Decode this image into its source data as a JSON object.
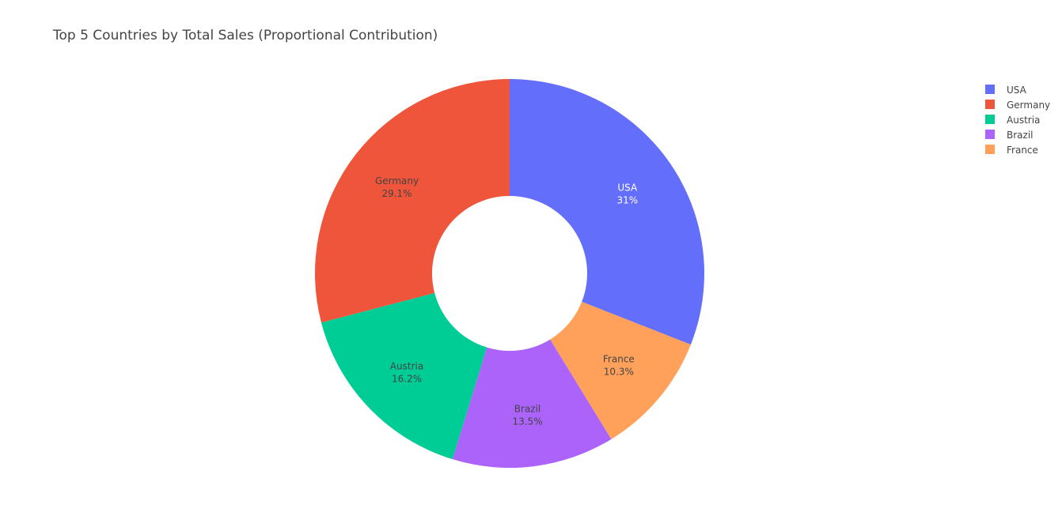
{
  "chart_data": {
    "type": "pie",
    "hole": true,
    "title": "Top 5 Countries by Total Sales (Proportional Contribution)",
    "slices": [
      {
        "label": "USA",
        "percent_label": "31%",
        "value": 31.0,
        "color": "#636efa",
        "text_color": "#ffffff"
      },
      {
        "label": "France",
        "percent_label": "10.3%",
        "value": 10.3,
        "color": "#ffa15a",
        "text_color": "#444444"
      },
      {
        "label": "Brazil",
        "percent_label": "13.5%",
        "value": 13.5,
        "color": "#ab63fa",
        "text_color": "#444444"
      },
      {
        "label": "Austria",
        "percent_label": "16.2%",
        "value": 16.2,
        "color": "#00cc96",
        "text_color": "#444444"
      },
      {
        "label": "Germany",
        "percent_label": "29.1%",
        "value": 29.1,
        "color": "#ef553b",
        "text_color": "#444444"
      }
    ],
    "legend": {
      "placement": "top-right",
      "items": [
        {
          "label": "USA",
          "color": "#636efa"
        },
        {
          "label": "Germany",
          "color": "#ef553b"
        },
        {
          "label": "Austria",
          "color": "#00cc96"
        },
        {
          "label": "Brazil",
          "color": "#ab63fa"
        },
        {
          "label": "France",
          "color": "#ffa15a"
        }
      ]
    }
  }
}
